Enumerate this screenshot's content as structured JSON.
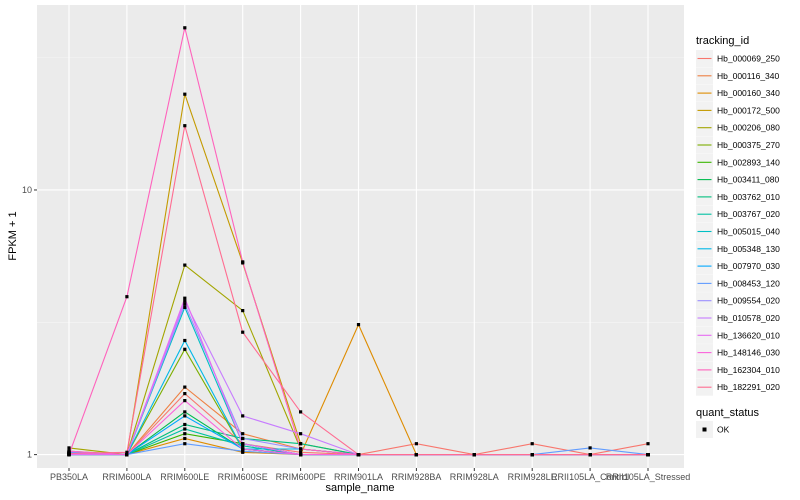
{
  "chart_data": {
    "type": "line",
    "title": "",
    "xlabel": "sample_name",
    "ylabel": "FPKM + 1",
    "y_scale": "log10",
    "ylim": [
      0.89,
      50
    ],
    "y_ticks": [
      1,
      10
    ],
    "y_tick_labels": [
      "1",
      "10"
    ],
    "grid": true,
    "categories": [
      "PB350LA",
      "RRIM600LA",
      "RRIM600LE",
      "RRIM600SE",
      "RRIM600PE",
      "RRIM901LA",
      "RRIM928BA",
      "RRIM928LA",
      "RRIM928LE",
      "RRII105LA_Control",
      "RRII105LA_Stressed"
    ],
    "category_labels": [
      "PB350LA",
      "RRIM600LA",
      "RRIM600LE",
      "RRIM600SE",
      "RRIM600PE",
      "RRIM901LA",
      "RRIM928BA",
      "RRIM928LA",
      "RRIM928LE",
      "RRII105LA_Control",
      "RRII105LA_Stressed"
    ],
    "legend": {
      "title": "tracking_id",
      "position": "right"
    },
    "shape_legend": {
      "title": "quant_status",
      "entries": [
        "OK"
      ]
    },
    "series": [
      {
        "name": "Hb_000069_250",
        "color": "#F8766D",
        "values": [
          1.02,
          1.0,
          1.7,
          1.1,
          1.02,
          1.0,
          1.1,
          1.0,
          1.1,
          1.0,
          1.1
        ]
      },
      {
        "name": "Hb_000116_340",
        "color": "#EE8043",
        "values": [
          1.02,
          1.0,
          1.8,
          1.2,
          1.05,
          1.0,
          1.0,
          1.0,
          1.0,
          1.0,
          1.0
        ]
      },
      {
        "name": "Hb_000160_340",
        "color": "#DE8C00",
        "values": [
          1.0,
          1.0,
          1.15,
          1.02,
          1.0,
          3.1,
          1.0,
          1.0,
          1.0,
          1.0,
          1.0
        ]
      },
      {
        "name": "Hb_000172_500",
        "color": "#C49A00",
        "values": [
          1.01,
          1.0,
          23.0,
          5.3,
          1.1,
          1.0,
          1.0,
          1.0,
          1.0,
          1.0,
          1.0
        ]
      },
      {
        "name": "Hb_000206_080",
        "color": "#A3A500",
        "values": [
          1.06,
          1.0,
          5.2,
          3.5,
          1.05,
          1.0,
          1.0,
          1.0,
          1.0,
          1.0,
          1.0
        ]
      },
      {
        "name": "Hb_000375_270",
        "color": "#7CAE00",
        "values": [
          1.03,
          1.0,
          2.5,
          1.05,
          1.0,
          1.0,
          1.0,
          1.0,
          1.0,
          1.0,
          1.0
        ]
      },
      {
        "name": "Hb_002893_140",
        "color": "#39B600",
        "values": [
          1.0,
          1.0,
          1.2,
          1.1,
          1.0,
          1.0,
          1.0,
          1.0,
          1.0,
          1.0,
          1.0
        ]
      },
      {
        "name": "Hb_003411_080",
        "color": "#00BB4E",
        "values": [
          1.01,
          1.0,
          1.45,
          1.05,
          1.0,
          1.0,
          1.0,
          1.0,
          1.0,
          1.0,
          1.0
        ]
      },
      {
        "name": "Hb_003762_010",
        "color": "#00BF7D",
        "values": [
          1.0,
          1.0,
          1.3,
          1.15,
          1.1,
          1.0,
          1.0,
          1.0,
          1.0,
          1.0,
          1.0
        ]
      },
      {
        "name": "Hb_003767_020",
        "color": "#00C1A3",
        "values": [
          1.02,
          1.0,
          1.25,
          1.08,
          1.0,
          1.0,
          1.0,
          1.0,
          1.0,
          1.0,
          1.0
        ]
      },
      {
        "name": "Hb_005015_040",
        "color": "#00BFC4",
        "values": [
          1.0,
          1.0,
          3.6,
          1.1,
          1.0,
          1.0,
          1.0,
          1.0,
          1.0,
          1.0,
          1.0
        ]
      },
      {
        "name": "Hb_005348_130",
        "color": "#00B8E7",
        "values": [
          1.01,
          1.0,
          2.7,
          1.05,
          1.05,
          1.0,
          1.0,
          1.0,
          1.0,
          1.0,
          1.0
        ]
      },
      {
        "name": "Hb_007970_030",
        "color": "#00A9FF",
        "values": [
          1.0,
          1.0,
          1.4,
          1.05,
          1.0,
          1.0,
          1.0,
          1.0,
          1.0,
          1.0,
          1.0
        ]
      },
      {
        "name": "Hb_008453_120",
        "color": "#619CFF",
        "values": [
          1.02,
          1.0,
          1.1,
          1.03,
          1.0,
          1.0,
          1.0,
          1.0,
          1.0,
          1.06,
          1.0
        ]
      },
      {
        "name": "Hb_009554_020",
        "color": "#9B8EFF",
        "values": [
          1.0,
          1.0,
          3.7,
          1.15,
          1.05,
          1.0,
          1.0,
          1.0,
          1.0,
          1.0,
          1.0
        ]
      },
      {
        "name": "Hb_010578_020",
        "color": "#C77CFF",
        "values": [
          1.01,
          1.0,
          3.8,
          1.4,
          1.2,
          1.0,
          1.0,
          1.0,
          1.0,
          1.0,
          1.0
        ]
      },
      {
        "name": "Hb_136620_010",
        "color": "#E76BF3",
        "values": [
          1.0,
          1.0,
          3.9,
          1.1,
          1.0,
          1.0,
          1.0,
          1.0,
          1.0,
          1.0,
          1.0
        ]
      },
      {
        "name": "Hb_148146_030",
        "color": "#FA62DB",
        "values": [
          1.03,
          1.0,
          1.6,
          1.05,
          1.0,
          1.0,
          1.0,
          1.0,
          1.0,
          1.0,
          1.0
        ]
      },
      {
        "name": "Hb_162304_010",
        "color": "#FF62BC",
        "values": [
          1.0,
          3.95,
          41.0,
          5.35,
          1.05,
          1.0,
          1.0,
          1.0,
          1.0,
          1.0,
          1.0
        ]
      },
      {
        "name": "Hb_182291_020",
        "color": "#FF6C91",
        "values": [
          1.01,
          1.02,
          17.5,
          2.9,
          1.45,
          1.0,
          1.0,
          1.0,
          1.0,
          1.0,
          1.0
        ]
      }
    ]
  }
}
